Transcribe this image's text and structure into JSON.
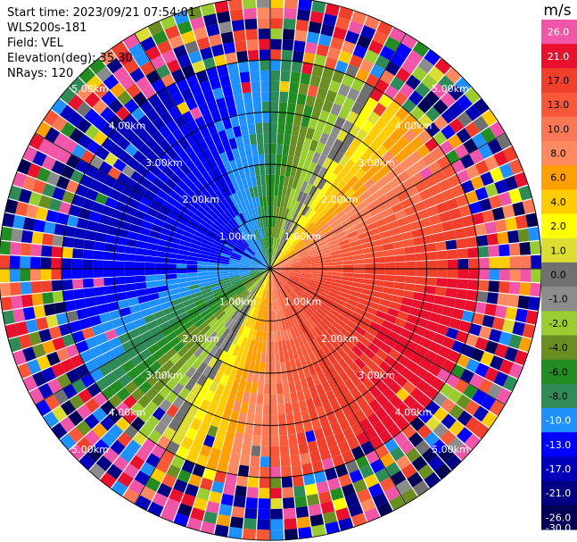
{
  "info": {
    "start_time": "Start time: 2023/09/21 07:54:01",
    "instrument": "WLS200s-181",
    "field": "Field: VEL",
    "elevation": "Elevation(deg): 35.30",
    "nrays": "NRays: 120"
  },
  "chart_data": {
    "type": "heatmap",
    "projection": "polar",
    "field": "VEL",
    "nrays": 120,
    "range_rings_km": [
      1.0,
      2.0,
      3.0,
      4.0
    ],
    "max_range_km": 5.2,
    "range_labels": {
      "1": "1.00km",
      "2": "2.00km",
      "3": "3.00km",
      "4": "4.00km",
      "5": "5.00km"
    },
    "range_gate_km": 0.2,
    "radial_spoke_deg": [
      0,
      30,
      60,
      90,
      120,
      150,
      180,
      210,
      240,
      270,
      300,
      330
    ],
    "flow_direction_deg": 300,
    "flow_amplitude_ms": 12,
    "noise_start_km": 4.0,
    "colorbar": {
      "unit": "m/s",
      "ticks": [
        "26.0",
        "21.0",
        "17.0",
        "13.0",
        "10.0",
        "8.0",
        "6.0",
        "4.0",
        "2.0",
        "1.0",
        "0.0",
        "-1.0",
        "-2.0",
        "-4.0",
        "-6.0",
        "-8.0",
        "-10.0",
        "-13.0",
        "-17.0",
        "-21.0",
        "-26.0",
        "-30.0"
      ],
      "colors": [
        "#f055a8",
        "#e8102c",
        "#f0402c",
        "#f85838",
        "#fa7856",
        "#ff8a60",
        "#ffa000",
        "#ffcc00",
        "#ffff00",
        "#dddd33",
        "#707070",
        "#8c8c8c",
        "#9acd32",
        "#6b8e23",
        "#228b22",
        "#2e8b57",
        "#1e90ff",
        "#0000ff",
        "#0000bb",
        "#000080",
        "#000055"
      ]
    }
  }
}
